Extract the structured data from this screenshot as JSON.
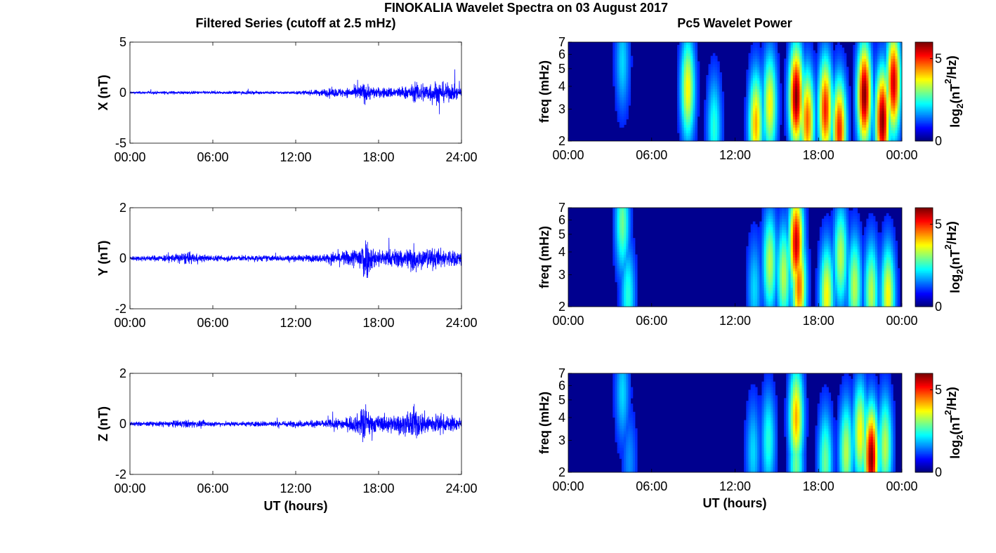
{
  "figure": {
    "title": "FINOKALIA Wavelet Spectra on 03 August 2017",
    "left_title": "Filtered Series (cutoff at 2.5 mHz)",
    "right_title": "Pc5 Wavelet Power",
    "left_xlabel": "UT (hours)",
    "right_xlabel": "UT (hours)",
    "colors": {
      "trace": "#0000ff",
      "background": "#ffffff",
      "axes": "#000000",
      "spectrum_floor": "#00008f"
    }
  },
  "chart_data": [
    {
      "type": "line",
      "ylabel": "X (nT)",
      "x_range_hours": [
        0,
        24
      ],
      "ylim": [
        -5,
        5
      ],
      "xticks": [
        "00:00",
        "06:00",
        "12:00",
        "18:00",
        "24:00"
      ],
      "yticks": [
        "-5",
        "0",
        "5"
      ],
      "envelope": {
        "x": [
          0,
          2,
          4,
          6,
          8,
          10,
          12,
          13.5,
          14,
          15,
          16,
          16.5,
          17,
          17.5,
          18,
          19,
          20,
          20.5,
          21,
          21.5,
          22,
          22.5,
          23,
          23.5,
          24
        ],
        "amplitude": [
          0.15,
          0.18,
          0.2,
          0.18,
          0.2,
          0.18,
          0.18,
          0.35,
          0.5,
          0.55,
          0.6,
          0.9,
          1.3,
          0.8,
          0.6,
          0.7,
          0.8,
          1.0,
          1.4,
          1.2,
          1.5,
          1.3,
          1.1,
          0.9,
          0.6
        ]
      }
    },
    {
      "type": "line",
      "ylabel": "Y (nT)",
      "x_range_hours": [
        0,
        24
      ],
      "ylim": [
        -2,
        2
      ],
      "xticks": [
        "00:00",
        "06:00",
        "12:00",
        "18:00",
        "24:00"
      ],
      "yticks": [
        "-2",
        "0",
        "2"
      ],
      "envelope": {
        "x": [
          0,
          2,
          3,
          4,
          5,
          6,
          8,
          10,
          12,
          14,
          15,
          16,
          16.5,
          17,
          17.5,
          18,
          19,
          20,
          20.5,
          21,
          22,
          23,
          24
        ],
        "amplitude": [
          0.12,
          0.15,
          0.2,
          0.3,
          0.2,
          0.15,
          0.15,
          0.15,
          0.15,
          0.2,
          0.35,
          0.4,
          0.6,
          1.2,
          0.6,
          0.45,
          0.45,
          0.5,
          0.8,
          0.5,
          0.5,
          0.45,
          0.4
        ]
      }
    },
    {
      "type": "line",
      "ylabel": "Z (nT)",
      "x_range_hours": [
        0,
        24
      ],
      "ylim": [
        -2,
        2
      ],
      "xticks": [
        "00:00",
        "06:00",
        "12:00",
        "18:00",
        "24:00"
      ],
      "yticks": [
        "-2",
        "0",
        "2"
      ],
      "envelope": {
        "x": [
          0,
          2,
          4,
          6,
          8,
          10,
          12,
          14,
          15,
          16,
          16.5,
          17,
          17.5,
          18,
          19,
          20,
          20.5,
          21,
          22,
          23,
          24
        ],
        "amplitude": [
          0.1,
          0.12,
          0.2,
          0.12,
          0.12,
          0.15,
          0.15,
          0.2,
          0.25,
          0.35,
          0.5,
          1.0,
          0.5,
          0.4,
          0.45,
          0.5,
          0.9,
          0.6,
          0.5,
          0.4,
          0.35
        ]
      }
    },
    {
      "type": "heatmap",
      "ylabel": "freq (mHz)",
      "x_range_hours": [
        0,
        24
      ],
      "freq_range_mhz": [
        2,
        7
      ],
      "yscale": "log",
      "xticks": [
        "00:00",
        "06:00",
        "12:00",
        "18:00",
        "00:00"
      ],
      "yticks": [
        "2",
        "3",
        "4",
        "5",
        "6",
        "7"
      ],
      "colorbar": {
        "label_prefix": "log",
        "label_sub": "2",
        "label_mid": "(nT",
        "label_sup": "2",
        "label_suffix": "/Hz)",
        "ticks": [
          "0",
          "5"
        ],
        "range": [
          0,
          6
        ]
      },
      "activity_blobs": [
        {
          "t": 3.9,
          "f": 5.5,
          "power": 1.5
        },
        {
          "t": 8.6,
          "f": 3.9,
          "power": 3.5
        },
        {
          "t": 10.5,
          "f": 2.4,
          "power": 2.0
        },
        {
          "t": 13.5,
          "f": 2.5,
          "power": 4.0
        },
        {
          "t": 14.5,
          "f": 3.2,
          "power": 3.5
        },
        {
          "t": 16.4,
          "f": 3.5,
          "power": 6.0
        },
        {
          "t": 17.2,
          "f": 2.6,
          "power": 4.5
        },
        {
          "t": 18.5,
          "f": 3.0,
          "power": 5.0
        },
        {
          "t": 19.5,
          "f": 2.3,
          "power": 5.0
        },
        {
          "t": 21.3,
          "f": 3.6,
          "power": 6.0
        },
        {
          "t": 22.6,
          "f": 2.6,
          "power": 6.0
        },
        {
          "t": 23.4,
          "f": 4.2,
          "power": 5.5
        }
      ]
    },
    {
      "type": "heatmap",
      "ylabel": "freq (mHz)",
      "x_range_hours": [
        0,
        24
      ],
      "freq_range_mhz": [
        2,
        7
      ],
      "yscale": "log",
      "xticks": [
        "00:00",
        "06:00",
        "12:00",
        "18:00",
        "00:00"
      ],
      "yticks": [
        "2",
        "3",
        "4",
        "5",
        "6",
        "7"
      ],
      "colorbar": {
        "label_prefix": "log",
        "label_sub": "2",
        "label_mid": "(nT",
        "label_sup": "2",
        "label_suffix": "/Hz)",
        "ticks": [
          "0",
          "5"
        ],
        "range": [
          0,
          6
        ]
      },
      "activity_blobs": [
        {
          "t": 3.9,
          "f": 5.8,
          "power": 2.5
        },
        {
          "t": 4.3,
          "f": 2.3,
          "power": 2.0
        },
        {
          "t": 13.4,
          "f": 2.5,
          "power": 1.5
        },
        {
          "t": 14.5,
          "f": 3.5,
          "power": 3.0
        },
        {
          "t": 15.5,
          "f": 3.0,
          "power": 3.0
        },
        {
          "t": 16.4,
          "f": 4.5,
          "power": 5.5
        },
        {
          "t": 16.6,
          "f": 2.6,
          "power": 4.5
        },
        {
          "t": 18.6,
          "f": 2.3,
          "power": 3.5
        },
        {
          "t": 19.6,
          "f": 3.8,
          "power": 3.0
        },
        {
          "t": 20.6,
          "f": 2.6,
          "power": 3.0
        },
        {
          "t": 21.8,
          "f": 2.4,
          "power": 3.0
        },
        {
          "t": 23.0,
          "f": 2.3,
          "power": 3.5
        }
      ]
    },
    {
      "type": "heatmap",
      "ylabel": "freq (mHz)",
      "x_range_hours": [
        0,
        24
      ],
      "freq_range_mhz": [
        2,
        7
      ],
      "yscale": "log",
      "xticks": [
        "00:00",
        "06:00",
        "12:00",
        "18:00",
        "00:00"
      ],
      "yticks": [
        "2",
        "3",
        "4",
        "5",
        "6",
        "7"
      ],
      "colorbar": {
        "label_prefix": "log",
        "label_sub": "2",
        "label_mid": "(nT",
        "label_sup": "2",
        "label_suffix": "/Hz)",
        "ticks": [
          "0",
          "5"
        ],
        "range": [
          0,
          6
        ]
      },
      "activity_blobs": [
        {
          "t": 3.9,
          "f": 5.5,
          "power": 1.5
        },
        {
          "t": 4.4,
          "f": 2.3,
          "power": 1.0
        },
        {
          "t": 13.3,
          "f": 2.6,
          "power": 1.5
        },
        {
          "t": 14.4,
          "f": 3.0,
          "power": 2.0
        },
        {
          "t": 16.4,
          "f": 4.0,
          "power": 4.0
        },
        {
          "t": 16.4,
          "f": 2.2,
          "power": 2.5
        },
        {
          "t": 18.5,
          "f": 2.3,
          "power": 2.5
        },
        {
          "t": 20.0,
          "f": 2.6,
          "power": 3.0
        },
        {
          "t": 21.0,
          "f": 3.3,
          "power": 3.5
        },
        {
          "t": 21.8,
          "f": 2.4,
          "power": 6.0
        },
        {
          "t": 22.8,
          "f": 2.8,
          "power": 3.0
        }
      ]
    }
  ]
}
